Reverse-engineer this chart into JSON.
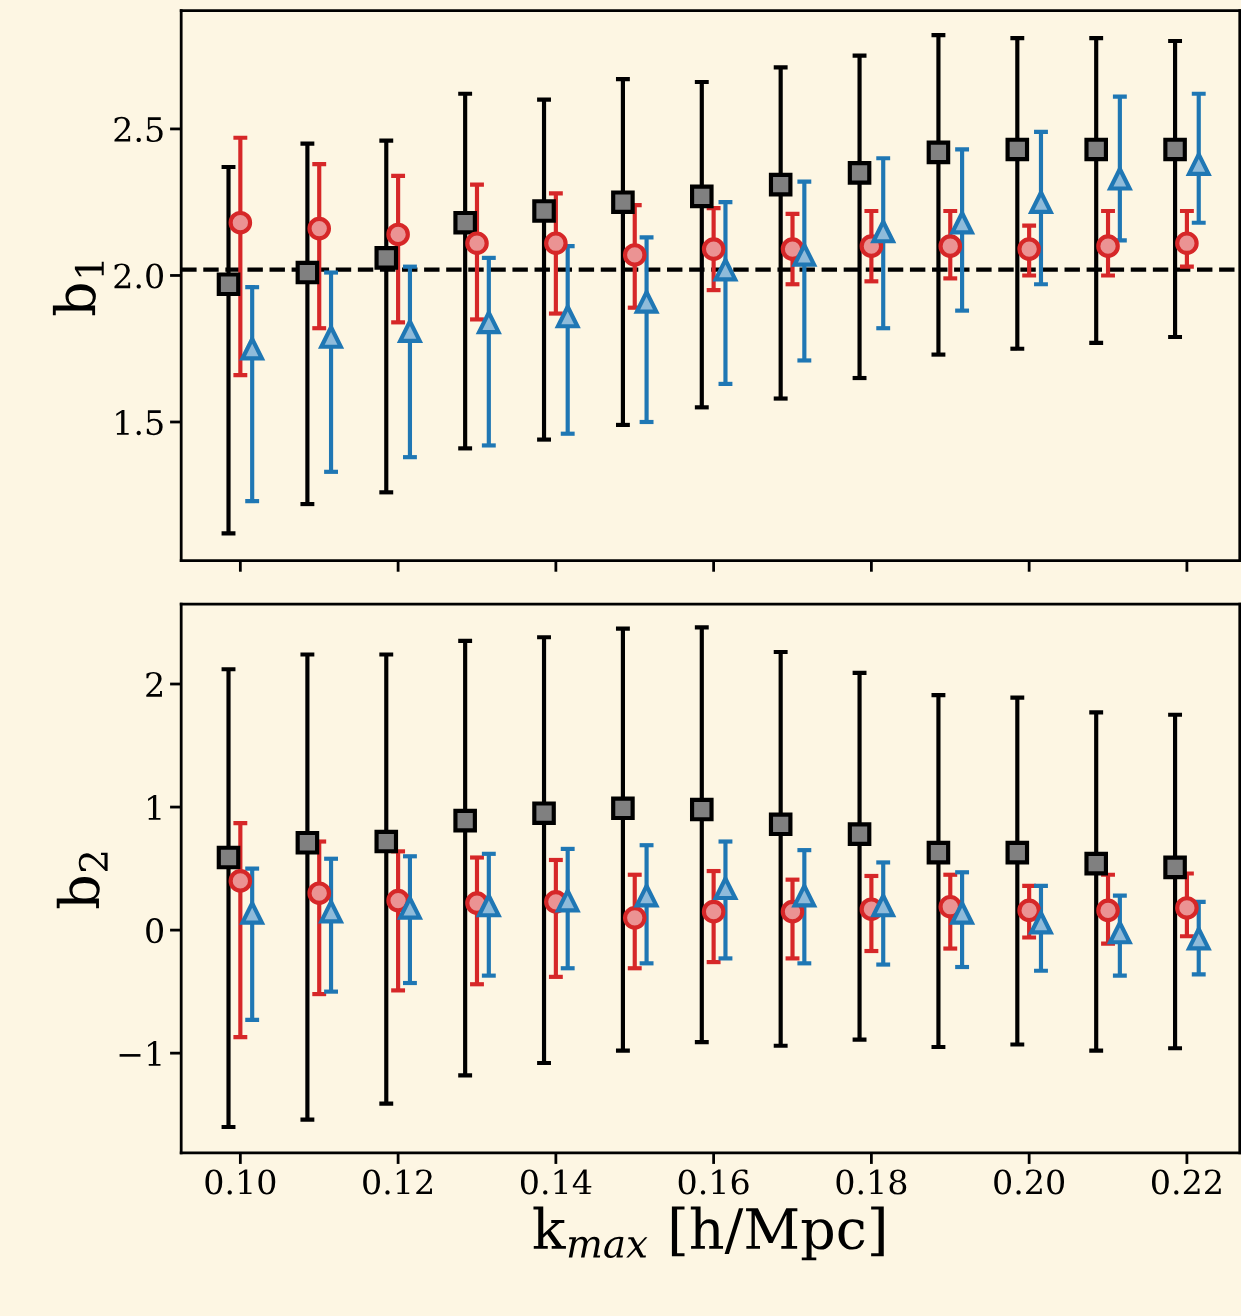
{
  "chart_data": [
    {
      "type": "scatter",
      "ylabel": "b$_{1}$",
      "xlim": [
        0.0925,
        0.2267
      ],
      "ylim": [
        1.027,
        2.904
      ],
      "xticks": [
        0.1,
        0.12,
        0.14,
        0.16,
        0.18,
        0.2,
        0.22
      ],
      "yticks": [
        1.5,
        {
          "value": 2,
          "label": "2.0"
        },
        2.5
      ],
      "tick_labels": "y",
      "ref_lines": [
        {
          "axis": "y",
          "value": 2.02,
          "color": "#000000",
          "line_style": "dashed"
        }
      ],
      "series": [
        {
          "color": "#000000",
          "marker": "square",
          "x": [
            0.0985,
            0.1085,
            0.1185,
            0.1285,
            0.1385,
            0.1485,
            0.1585,
            0.1685,
            0.1785,
            0.1885,
            0.1985,
            0.2085,
            0.2185
          ],
          "values": [
            1.97,
            2.01,
            2.06,
            2.18,
            2.22,
            2.25,
            2.27,
            2.31,
            2.35,
            2.42,
            2.43,
            2.43,
            2.43
          ],
          "errors": [
            [
              1.12,
              2.37
            ],
            [
              1.22,
              2.45
            ],
            [
              1.26,
              2.46
            ],
            [
              1.41,
              2.62
            ],
            [
              1.44,
              2.6
            ],
            [
              1.49,
              2.67
            ],
            [
              1.55,
              2.66
            ],
            [
              1.58,
              2.71
            ],
            [
              1.65,
              2.75
            ],
            [
              1.73,
              2.82
            ],
            [
              1.75,
              2.81
            ],
            [
              1.77,
              2.81
            ],
            [
              1.79,
              2.8
            ]
          ]
        },
        {
          "color": "#d62728",
          "marker": "circle",
          "x": [
            0.1,
            0.11,
            0.12,
            0.13,
            0.14,
            0.15,
            0.16,
            0.17,
            0.18,
            0.19,
            0.2,
            0.21,
            0.22
          ],
          "values": [
            2.18,
            2.16,
            2.14,
            2.11,
            2.11,
            2.07,
            2.09,
            2.09,
            2.1,
            2.1,
            2.09,
            2.1,
            2.11
          ],
          "errors": [
            [
              1.66,
              2.47
            ],
            [
              1.82,
              2.38
            ],
            [
              1.84,
              2.34
            ],
            [
              1.85,
              2.31
            ],
            [
              1.87,
              2.28
            ],
            [
              1.89,
              2.24
            ],
            [
              1.95,
              2.23
            ],
            [
              1.97,
              2.21
            ],
            [
              1.98,
              2.22
            ],
            [
              1.99,
              2.22
            ],
            [
              2.0,
              2.17
            ],
            [
              2.0,
              2.22
            ],
            [
              2.03,
              2.22
            ]
          ]
        },
        {
          "color": "#1f77b4",
          "marker": "triangle",
          "x": [
            0.1015,
            0.1115,
            0.1215,
            0.1315,
            0.1415,
            0.1515,
            0.1615,
            0.1715,
            0.1815,
            0.1915,
            0.2015,
            0.2115,
            0.2215
          ],
          "values": [
            1.75,
            1.79,
            1.81,
            1.84,
            1.86,
            1.91,
            2.02,
            2.07,
            2.15,
            2.18,
            2.25,
            2.33,
            2.38
          ],
          "errors": [
            [
              1.23,
              1.96
            ],
            [
              1.33,
              2.01
            ],
            [
              1.38,
              2.03
            ],
            [
              1.42,
              2.06
            ],
            [
              1.46,
              2.1
            ],
            [
              1.5,
              2.13
            ],
            [
              1.63,
              2.25
            ],
            [
              1.71,
              2.32
            ],
            [
              1.82,
              2.4
            ],
            [
              1.88,
              2.43
            ],
            [
              1.97,
              2.49
            ],
            [
              2.12,
              2.61
            ],
            [
              2.18,
              2.62
            ]
          ]
        }
      ]
    },
    {
      "type": "scatter",
      "xlabel": "k$_{max}$ [h/Mpc]",
      "ylabel": "b$_{2}$",
      "xlim": [
        0.0925,
        0.2267
      ],
      "ylim": [
        -1.81,
        2.65
      ],
      "xticks": [
        {
          "value": 0.1,
          "label": "0.10"
        },
        {
          "value": 0.12,
          "label": "0.12"
        },
        {
          "value": 0.14,
          "label": "0.14"
        },
        {
          "value": 0.16,
          "label": "0.16"
        },
        {
          "value": 0.18,
          "label": "0.18"
        },
        {
          "value": 0.2,
          "label": "0.20"
        },
        {
          "value": 0.22,
          "label": "0.22"
        }
      ],
      "yticks": [
        {
          "value": -1,
          "label": "−1"
        },
        0,
        1,
        2
      ],
      "series": [
        {
          "color": "#000000",
          "marker": "square",
          "x": [
            0.0985,
            0.1085,
            0.1185,
            0.1285,
            0.1385,
            0.1485,
            0.1585,
            0.1685,
            0.1785,
            0.1885,
            0.1985,
            0.2085,
            0.2185
          ],
          "values": [
            0.59,
            0.71,
            0.72,
            0.89,
            0.95,
            0.99,
            0.98,
            0.86,
            0.78,
            0.63,
            0.63,
            0.54,
            0.51
          ],
          "errors": [
            [
              -1.6,
              2.12
            ],
            [
              -1.54,
              2.24
            ],
            [
              -1.41,
              2.24
            ],
            [
              -1.18,
              2.35
            ],
            [
              -1.08,
              2.38
            ],
            [
              -0.98,
              2.45
            ],
            [
              -0.91,
              2.46
            ],
            [
              -0.94,
              2.26
            ],
            [
              -0.89,
              2.09
            ],
            [
              -0.95,
              1.91
            ],
            [
              -0.93,
              1.89
            ],
            [
              -0.98,
              1.77
            ],
            [
              -0.96,
              1.75
            ]
          ]
        },
        {
          "color": "#d62728",
          "marker": "circle",
          "x": [
            0.1,
            0.11,
            0.12,
            0.13,
            0.14,
            0.15,
            0.16,
            0.17,
            0.18,
            0.19,
            0.2,
            0.21,
            0.22
          ],
          "values": [
            0.4,
            0.3,
            0.24,
            0.22,
            0.23,
            0.1,
            0.15,
            0.15,
            0.17,
            0.19,
            0.16,
            0.16,
            0.18
          ],
          "errors": [
            [
              -0.87,
              0.87
            ],
            [
              -0.52,
              0.72
            ],
            [
              -0.49,
              0.64
            ],
            [
              -0.44,
              0.59
            ],
            [
              -0.38,
              0.57
            ],
            [
              -0.31,
              0.45
            ],
            [
              -0.26,
              0.48
            ],
            [
              -0.23,
              0.41
            ],
            [
              -0.17,
              0.44
            ],
            [
              -0.15,
              0.45
            ],
            [
              -0.06,
              0.36
            ],
            [
              -0.11,
              0.45
            ],
            [
              -0.05,
              0.46
            ]
          ]
        },
        {
          "color": "#1f77b4",
          "marker": "triangle",
          "x": [
            0.1015,
            0.1115,
            0.1215,
            0.1315,
            0.1415,
            0.1515,
            0.1615,
            0.1715,
            0.1815,
            0.1915,
            0.2015,
            0.2115,
            0.2215
          ],
          "values": [
            0.14,
            0.15,
            0.18,
            0.2,
            0.24,
            0.28,
            0.34,
            0.28,
            0.2,
            0.14,
            0.06,
            -0.02,
            -0.07
          ],
          "errors": [
            [
              -0.73,
              0.5
            ],
            [
              -0.5,
              0.58
            ],
            [
              -0.43,
              0.6
            ],
            [
              -0.37,
              0.62
            ],
            [
              -0.31,
              0.66
            ],
            [
              -0.27,
              0.69
            ],
            [
              -0.23,
              0.72
            ],
            [
              -0.27,
              0.65
            ],
            [
              -0.28,
              0.55
            ],
            [
              -0.3,
              0.47
            ],
            [
              -0.33,
              0.36
            ],
            [
              -0.37,
              0.28
            ],
            [
              -0.36,
              0.23
            ]
          ]
        }
      ]
    }
  ]
}
